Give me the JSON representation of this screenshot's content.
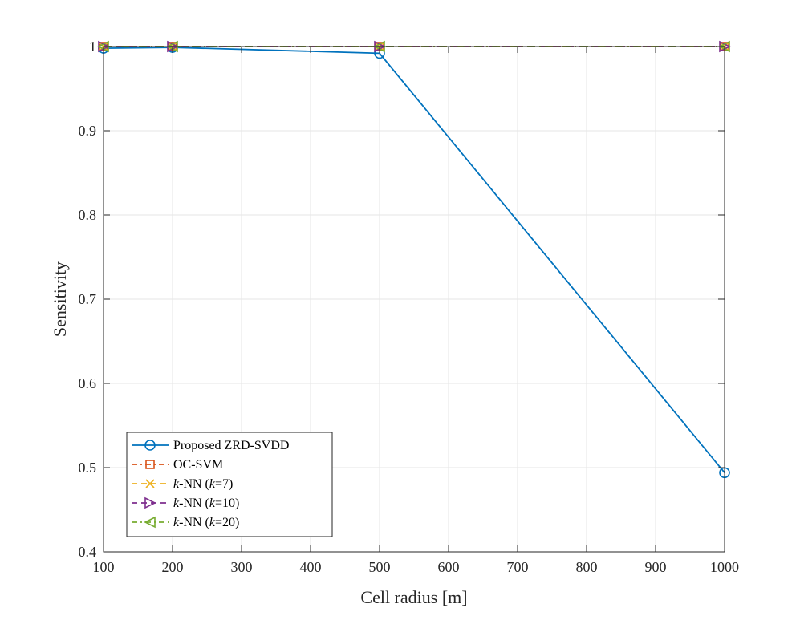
{
  "chart_data": {
    "type": "line",
    "xlabel": "Cell radius [m]",
    "ylabel": "Sensitivity",
    "xlim": [
      100,
      1000
    ],
    "ylim": [
      0.4,
      1.0
    ],
    "xticks": [
      100,
      200,
      300,
      400,
      500,
      600,
      700,
      800,
      900,
      1000
    ],
    "yticks": [
      0.4,
      0.5,
      0.6,
      0.7,
      0.8,
      0.9,
      1.0
    ],
    "xtick_labels": [
      "100",
      "200",
      "300",
      "400",
      "500",
      "600",
      "700",
      "800",
      "900",
      "1000"
    ],
    "ytick_labels": [
      "0.4",
      "0.5",
      "0.6",
      "0.7",
      "0.8",
      "0.9",
      "1"
    ],
    "grid": true,
    "legend_position": "bottom-left",
    "x": [
      100,
      200,
      500,
      1000
    ],
    "series": [
      {
        "name": "Proposed ZRD-SVDD",
        "legend_main": "Proposed ZRD-SVDD",
        "legend_k": "",
        "legend_tail": "",
        "values": [
          0.998,
          0.999,
          0.992,
          0.494
        ],
        "color": "#0072BD",
        "marker": "circle",
        "dash": "solid"
      },
      {
        "name": "OC-SVM",
        "legend_main": "OC-SVM",
        "legend_k": "",
        "legend_tail": "",
        "values": [
          1.0,
          1.0,
          1.0,
          1.0
        ],
        "color": "#D95319",
        "marker": "square",
        "dash": "dashdot"
      },
      {
        "name": "k-NN (k=7)",
        "legend_main": "-NN (",
        "legend_k": "k",
        "legend_tail": "=7)",
        "values": [
          1.0,
          1.0,
          1.0,
          1.0
        ],
        "color": "#EDB120",
        "marker": "x",
        "dash": "dashed"
      },
      {
        "name": "k-NN (k=10)",
        "legend_main": "-NN (",
        "legend_k": "k",
        "legend_tail": "=10)",
        "values": [
          1.0,
          1.0,
          1.0,
          1.0
        ],
        "color": "#7E2F8E",
        "marker": "triangle-right",
        "dash": "dashed"
      },
      {
        "name": "k-NN (k=20)",
        "legend_main": "-NN (",
        "legend_k": "k",
        "legend_tail": "=20)",
        "values": [
          1.0,
          1.0,
          1.0,
          1.0
        ],
        "color": "#77AC30",
        "marker": "triangle-left",
        "dash": "dashdot"
      }
    ]
  }
}
